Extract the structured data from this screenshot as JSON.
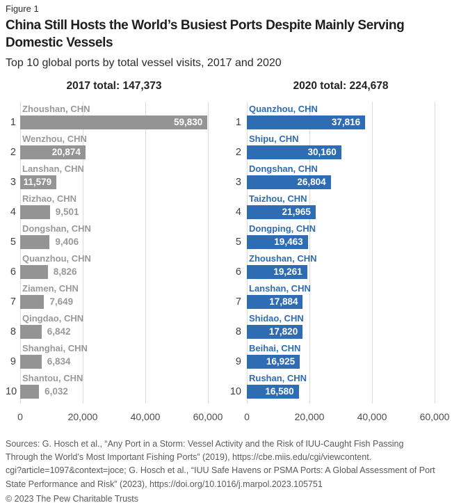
{
  "figure_label": "Figure 1",
  "title_lines": [
    "China Still Hosts the World’s Busiest Ports Despite Mainly Serving",
    "Domestic Vessels"
  ],
  "subtitle": "Top 10 global ports by total vessel visits, 2017 and 2020",
  "colors": {
    "bar_2017": "#949494",
    "bar_2020": "#2e6cb4",
    "label_2017": "#999999",
    "label_2020": "#2e6cb4",
    "outside_value": "#999999",
    "gridline": "#dcdcdc"
  },
  "chart_data": [
    {
      "type": "bar",
      "orientation": "horizontal",
      "title": "2017 total: 147,373",
      "ranks": [
        "1",
        "2",
        "3",
        "4",
        "5",
        "6",
        "7",
        "8",
        "9",
        "10"
      ],
      "categories": [
        "Zhoushan, CHN",
        "Wenzhou, CHN",
        "Lanshan, CHN",
        "Rizhao, CHN",
        "Dongshan, CHN",
        "Quanzhou, CHN",
        "Ziamen, CHN",
        "Qingdao, CHN",
        "Shanghai, CHN",
        "Shantou, CHN"
      ],
      "values": [
        59830,
        20874,
        11579,
        9501,
        9406,
        8826,
        7649,
        6842,
        6834,
        6032
      ],
      "value_labels": [
        "59,830",
        "20,874",
        "11,579",
        "9,501",
        "9,406",
        "8,826",
        "7,649",
        "6,842",
        "6,834",
        "6,032"
      ],
      "xlim": [
        0,
        60000
      ],
      "x_tick_positions": [
        0,
        20000,
        40000,
        60000
      ],
      "x_tick_labels": [
        "0",
        "20,000",
        "40,000",
        "60,000"
      ],
      "grid": true,
      "legend": false,
      "bar_color": "#949494",
      "label_color": "#999999"
    },
    {
      "type": "bar",
      "orientation": "horizontal",
      "title": "2020 total: 224,678",
      "ranks": [
        "1",
        "2",
        "3",
        "4",
        "5",
        "6",
        "7",
        "8",
        "9",
        "10"
      ],
      "categories": [
        "Quanzhou, CHN",
        "Shipu, CHN",
        "Dongshan, CHN",
        "Taizhou, CHN",
        "Dongping, CHN",
        "Zhoushan, CHN",
        "Lanshan, CHN",
        "Shidao, CHN",
        "Beihai, CHN",
        "Rushan, CHN"
      ],
      "values": [
        37816,
        30160,
        26804,
        21965,
        19463,
        19261,
        17884,
        17820,
        16925,
        16580
      ],
      "value_labels": [
        "37,816",
        "30,160",
        "26,804",
        "21,965",
        "19,463",
        "19,261",
        "17,884",
        "17,820",
        "16,925",
        "16,580"
      ],
      "xlim": [
        0,
        60000
      ],
      "x_tick_positions": [
        0,
        20000,
        40000,
        60000
      ],
      "x_tick_labels": [
        "0",
        "20,000",
        "40,000",
        "60,000"
      ],
      "grid": true,
      "legend": false,
      "bar_color": "#2e6cb4",
      "label_color": "#2e6cb4"
    }
  ],
  "sources_lines": [
    "Sources: G. Hosch et al., “Any Port in a Storm: Vessel Activity and the Risk of IUU-Caught Fish Passing",
    "Through the World’s Most Important Fishing Ports” (2019), https://cbe.miis.edu/cgi/viewcontent.",
    "cgi?article=1097&context=joce; G. Hosch et al., “IUU Safe Havens or PSMA Ports: A Global Assessment of Port",
    "State Performance and Risk” (2023), https://doi.org/10.1016/j.marpol.2023.105751"
  ],
  "copyright": "© 2023 The Pew Charitable Trusts"
}
